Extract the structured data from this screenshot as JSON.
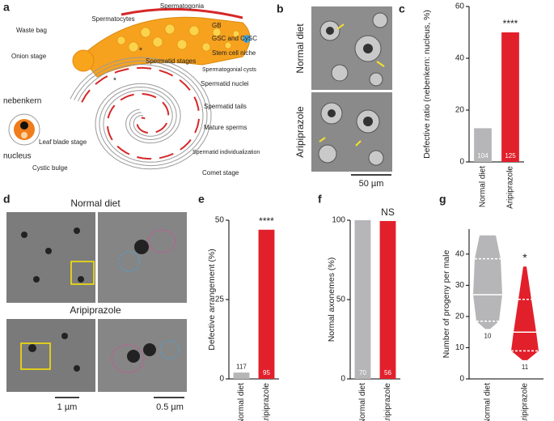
{
  "panel_a": {
    "letter": "a",
    "labels": {
      "spermatocytes": "Spermatocytes",
      "spermatogonia": "Spermatogonia",
      "gb": "GB",
      "gsc": "GSC and CySC",
      "niche": "Stem cell niche",
      "cysts": "Spermatogonial cysts",
      "waste": "Waste bag",
      "onion": "Onion stage",
      "nebenkern": "nebenkern",
      "nucleus": "nucleus",
      "stages": "Spermatid stages",
      "nuclei": "Spermatid nuclei",
      "tails": "Spermatid tails",
      "mature": "Mature sperms",
      "leaf": "Leaf blade stage",
      "bulge": "Cystic bulge",
      "individualization": "Spermatid individualization",
      "comet": "Comet stage",
      "star1": "*",
      "star2": "*"
    }
  },
  "panel_b": {
    "letter": "b",
    "rows": [
      "Normal diet",
      "Aripiprazole"
    ],
    "scale": "50 µm"
  },
  "panel_d": {
    "letter": "d",
    "rows": [
      "Normal diet",
      "Aripiprazole"
    ],
    "scales": [
      "1 µm",
      "0.5 µm"
    ]
  },
  "chart_data": [
    {
      "panel": "c",
      "type": "bar",
      "categories": [
        "Normal diet",
        "Aripiprazole"
      ],
      "values": [
        13,
        50
      ],
      "colors": [
        "#b6b6b8",
        "#e2202b"
      ],
      "n_labels": [
        104,
        125
      ],
      "annotation": "****",
      "ylabel": "Defective ratio (nebenkern: nucleus, %)",
      "ylim": [
        0,
        60
      ],
      "yticks": [
        0,
        20,
        40,
        60
      ]
    },
    {
      "panel": "e",
      "type": "bar",
      "categories": [
        "Normal diet",
        "Aripiprazole"
      ],
      "values": [
        2,
        47
      ],
      "colors": [
        "#b6b6b8",
        "#e2202b"
      ],
      "n_labels": [
        117,
        95
      ],
      "annotation": "****",
      "ylabel": "Defective arrangement  (%)",
      "ylim": [
        0,
        50
      ],
      "yticks": [
        0,
        25,
        50
      ]
    },
    {
      "panel": "f",
      "type": "bar",
      "categories": [
        "Normal diet",
        "Aripiprazole"
      ],
      "values": [
        100,
        99.5
      ],
      "colors": [
        "#b6b6b8",
        "#e2202b"
      ],
      "n_labels": [
        70,
        56
      ],
      "annotation": "NS",
      "ylabel": "Normal axonemes (%)",
      "ylim": [
        0,
        100
      ],
      "yticks": [
        0,
        50,
        100
      ]
    },
    {
      "panel": "g",
      "type": "violin",
      "categories": [
        "Normal diet",
        "Aripiprazole"
      ],
      "series": [
        {
          "color": "#b6b6b8",
          "min": 16,
          "q1": 18.5,
          "median": 27,
          "q3": 38.5,
          "max": 46
        },
        {
          "color": "#e2202b",
          "min": 6,
          "q1": 9,
          "median": 15,
          "q3": 25.5,
          "max": 36
        }
      ],
      "n_labels": [
        10,
        11
      ],
      "annotation": "*",
      "ylabel": "Number of progeny per male",
      "ylim": [
        0,
        48
      ],
      "yticks": [
        0,
        10,
        20,
        30,
        40
      ]
    }
  ]
}
